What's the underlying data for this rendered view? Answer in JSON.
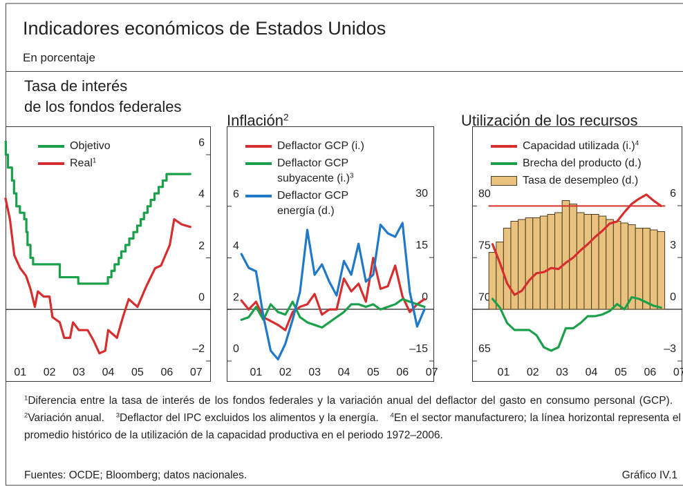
{
  "title": "Indicadores económicos de Estados Unidos",
  "subtitle": "En porcentaje",
  "chart_data": [
    {
      "type": "line",
      "title": [
        "Tasa de interés",
        "de los fondos federales"
      ],
      "xlim": [
        2001.0,
        2008.0
      ],
      "xticks": [
        {
          "value": 2001.5,
          "label": "01"
        },
        {
          "value": 2002.5,
          "label": "02"
        },
        {
          "value": 2003.5,
          "label": "03"
        },
        {
          "value": 2004.5,
          "label": "04"
        },
        {
          "value": 2005.5,
          "label": "05"
        },
        {
          "value": 2006.5,
          "label": "06"
        },
        {
          "value": 2007.5,
          "label": "07"
        }
      ],
      "ylim": [
        -2,
        7.1
      ],
      "yticks": [
        {
          "value": -2,
          "label": "–2"
        },
        0,
        2,
        4,
        6
      ],
      "y_axis_side": "right",
      "zero_line": "y",
      "series": [
        {
          "name": "Objetivo",
          "type": "step",
          "color": "#1aa04a",
          "x": [
            2001.0,
            2001.01,
            2001.08,
            2001.22,
            2001.29,
            2001.37,
            2001.49,
            2001.64,
            2001.71,
            2001.75,
            2001.85,
            2001.94,
            2002.85,
            2003.48,
            2004.49,
            2004.61,
            2004.72,
            2004.86,
            2004.95,
            2005.09,
            2005.22,
            2005.36,
            2005.49,
            2005.61,
            2005.72,
            2005.84,
            2005.95,
            2006.08,
            2006.22,
            2006.36,
            2006.49,
            2007.3
          ],
          "values": [
            6.5,
            6.0,
            5.5,
            5.0,
            4.5,
            4.0,
            3.75,
            3.5,
            3.0,
            2.5,
            2.0,
            1.75,
            1.25,
            1.0,
            1.25,
            1.5,
            1.75,
            2.0,
            2.25,
            2.5,
            2.75,
            3.0,
            3.25,
            3.5,
            3.75,
            4.0,
            4.25,
            4.5,
            4.75,
            5.0,
            5.25,
            5.25
          ]
        },
        {
          "name": "Real",
          "name_note": "1",
          "type": "line",
          "color": "#d62e2e",
          "x": [
            2001.0,
            2001.15,
            2001.3,
            2001.5,
            2001.7,
            2001.85,
            2002.0,
            2002.1,
            2002.3,
            2002.5,
            2002.6,
            2002.85,
            2003.0,
            2003.2,
            2003.3,
            2003.5,
            2003.8,
            2004.0,
            2004.2,
            2004.4,
            2004.5,
            2004.8,
            2005.0,
            2005.2,
            2005.5,
            2005.8,
            2006.1,
            2006.3,
            2006.6,
            2006.75,
            2007.0,
            2007.3
          ],
          "values": [
            4.3,
            3.5,
            2.1,
            1.6,
            1.3,
            0.8,
            0.1,
            0.7,
            0.5,
            0.5,
            -0.3,
            -0.5,
            -1.1,
            -1.1,
            -0.5,
            -0.8,
            -0.8,
            -1.2,
            -1.7,
            -1.6,
            -0.8,
            -1.1,
            -0.3,
            0.4,
            0.1,
            0.9,
            1.6,
            1.7,
            2.5,
            3.5,
            3.3,
            3.2
          ]
        }
      ]
    },
    {
      "type": "line",
      "title": "Inflación",
      "title_note": "2",
      "xlim": [
        2000.5,
        2007.58
      ],
      "xticks": [
        {
          "value": 2001.5,
          "label": "01"
        },
        {
          "value": 2002.5,
          "label": "02"
        },
        {
          "value": 2003.5,
          "label": "03"
        },
        {
          "value": 2004.5,
          "label": "04"
        },
        {
          "value": 2005.5,
          "label": "05"
        },
        {
          "value": 2006.5,
          "label": "06"
        },
        {
          "value": 2007.5,
          "label": "07"
        }
      ],
      "ylim": [
        0,
        9.1
      ],
      "yticks": [
        0,
        2,
        4,
        6
      ],
      "y2lim": [
        -15,
        53
      ],
      "y2ticks": [
        {
          "value": -15,
          "label": "–15"
        },
        0,
        15,
        30
      ],
      "zero_line": "y2",
      "x": [
        2001.0,
        2001.25,
        2001.5,
        2001.75,
        2002.0,
        2002.25,
        2002.5,
        2002.75,
        2003.0,
        2003.25,
        2003.5,
        2003.75,
        2004.0,
        2004.25,
        2004.5,
        2004.75,
        2005.0,
        2005.25,
        2005.5,
        2005.75,
        2006.0,
        2006.25,
        2006.5,
        2006.75,
        2007.0,
        2007.25
      ],
      "series": [
        {
          "name": "Deflactor GCP (i.)",
          "type": "line",
          "color": "#d62e2e",
          "values": [
            2.35,
            2.0,
            2.3,
            1.7,
            1.55,
            1.4,
            1.2,
            1.9,
            2.1,
            2.2,
            2.6,
            1.8,
            2.0,
            2.0,
            3.2,
            2.7,
            3.0,
            2.3,
            4.0,
            2.8,
            2.9,
            3.7,
            2.5,
            1.9,
            2.2,
            2.4
          ]
        },
        {
          "name": "Deflactor GCP subyacente (i.)",
          "name_note": "3",
          "type": "line",
          "color": "#1aa04a",
          "values": [
            1.6,
            1.7,
            2.1,
            1.6,
            2.2,
            1.9,
            1.8,
            2.3,
            1.7,
            1.5,
            1.4,
            1.3,
            1.5,
            1.7,
            1.9,
            2.2,
            2.2,
            2.1,
            2.2,
            2.0,
            2.1,
            2.2,
            2.4,
            2.3,
            2.2,
            2.1
          ]
        },
        {
          "name": "Deflactor GCP energía (d.)",
          "type": "line",
          "color": "#1f78c8",
          "axis": "y2",
          "values": [
            16,
            12,
            11,
            -2,
            -12,
            -14.5,
            -10,
            -3,
            5,
            23,
            10,
            13,
            8,
            4,
            14,
            10,
            19,
            8,
            10,
            24.5,
            22,
            21,
            25,
            5,
            -5,
            0
          ]
        }
      ]
    },
    {
      "type": "combo",
      "title": "Utilización de los recursos",
      "xlim": [
        2000.43,
        2007.6
      ],
      "xticks": [
        {
          "value": 2001.5,
          "label": "01"
        },
        {
          "value": 2002.5,
          "label": "02"
        },
        {
          "value": 2003.5,
          "label": "03"
        },
        {
          "value": 2004.5,
          "label": "04"
        },
        {
          "value": 2005.5,
          "label": "05"
        },
        {
          "value": 2006.5,
          "label": "06"
        },
        {
          "value": 2007.5,
          "label": "07"
        }
      ],
      "ylim": [
        65,
        87.7
      ],
      "yticks": [
        65,
        70,
        75,
        80
      ],
      "y2lim": [
        -3,
        10.6
      ],
      "y2ticks": [
        {
          "value": -3,
          "label": "–3"
        },
        0,
        3,
        6
      ],
      "zero_line": "y2",
      "x": [
        2001.125,
        2001.375,
        2001.625,
        2001.875,
        2002.125,
        2002.375,
        2002.625,
        2002.875,
        2003.125,
        2003.375,
        2003.625,
        2003.875,
        2004.125,
        2004.375,
        2004.625,
        2004.875,
        2005.125,
        2005.375,
        2005.625,
        2005.875,
        2006.125,
        2006.375,
        2006.625,
        2006.875
      ],
      "series": [
        {
          "name": "Capacidad utilizada (i.)",
          "name_note": "4",
          "type": "line",
          "color": "#d62e2e",
          "reference_line": 80,
          "values": [
            76.3,
            74.5,
            72.5,
            71.4,
            71.8,
            72.8,
            73.5,
            73.6,
            74.0,
            73.9,
            74.5,
            75.0,
            75.7,
            76.3,
            77.0,
            77.6,
            78.3,
            78.5,
            79.4,
            80.2,
            80.7,
            81.1,
            80.5,
            80.0
          ]
        },
        {
          "name": "Brecha del producto (d.)",
          "type": "line",
          "color": "#1aa04a",
          "axis": "y2",
          "values": [
            0.6,
            0.1,
            -0.8,
            -1.2,
            -1.2,
            -1.2,
            -1.5,
            -2.2,
            -2.4,
            -2.2,
            -1.1,
            -1.1,
            -0.8,
            -0.4,
            -0.4,
            -0.3,
            -0.1,
            0.3,
            0.0,
            0.7,
            0.6,
            0.4,
            0.2,
            0.1
          ]
        },
        {
          "name": "Tasa de desempleo (d.)",
          "type": "bar",
          "color": "#e9c27e",
          "edge_color": "#4a3b22",
          "axis": "y2",
          "values": [
            3.3,
            3.9,
            4.7,
            5.1,
            5.2,
            5.3,
            5.3,
            5.4,
            5.5,
            5.6,
            6.3,
            6.1,
            5.6,
            5.5,
            5.5,
            5.4,
            5.2,
            5.1,
            5.0,
            4.9,
            4.7,
            4.7,
            4.6,
            4.5
          ]
        }
      ]
    }
  ],
  "footnotes": [
    {
      "mark": "1",
      "text": "Diferencia entre la tasa de interés de los fondos federales y la variación anual del deflactor del gasto en consumo personal (GCP)."
    },
    {
      "mark": "2",
      "text": "Variación anual."
    },
    {
      "mark": "3",
      "text": "Deflactor del IPC excluidos los alimentos y la energía."
    },
    {
      "mark": "4",
      "text": "En el sector manufacturero;  la línea horizontal representa el promedio histórico de la utilización de la capacidad productiva en el periodo 1972–2006."
    }
  ],
  "source": "Fuentes: OCDE; Bloomberg; datos nacionales.",
  "figure_label": "Gráfico IV.1"
}
